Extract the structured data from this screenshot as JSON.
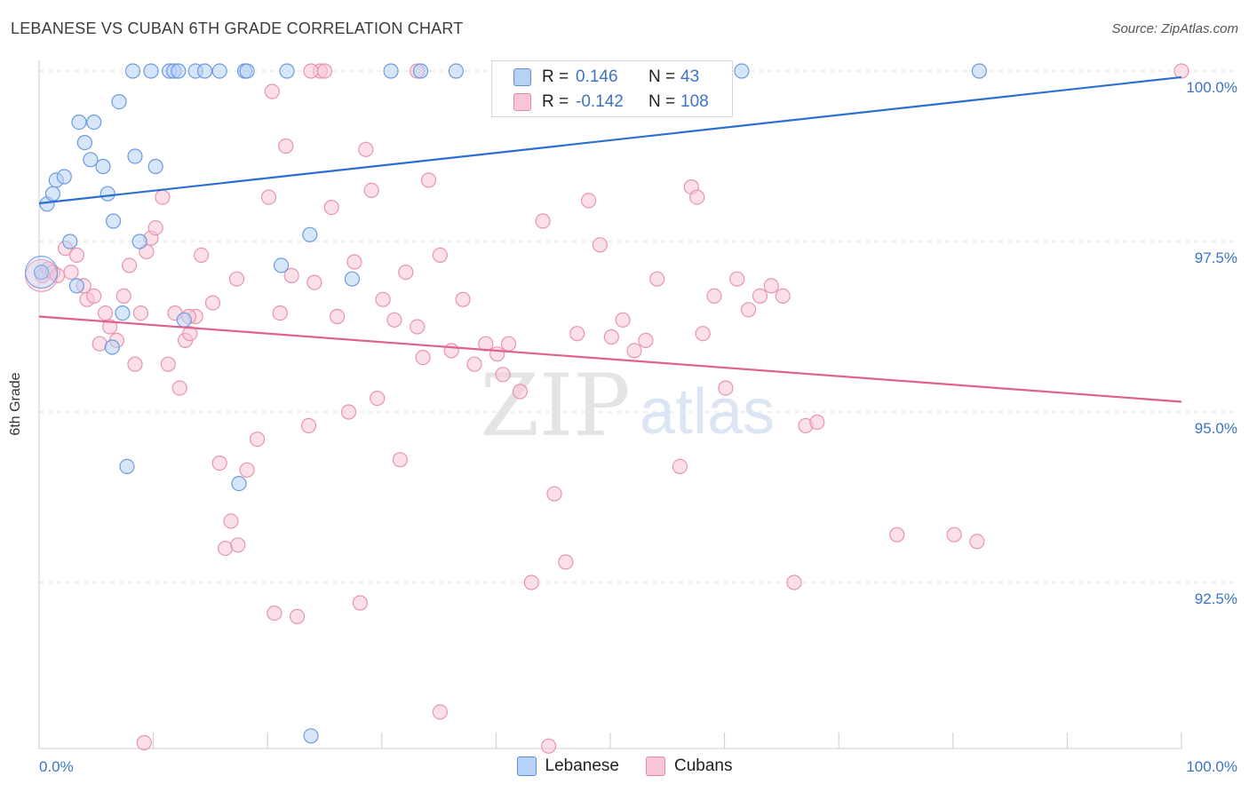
{
  "header": {
    "title": "LEBANESE VS CUBAN 6TH GRADE CORRELATION CHART",
    "source": "Source: ZipAtlas.com"
  },
  "watermark": {
    "zip": "ZIP",
    "atlas": "atlas"
  },
  "legend_top": {
    "r_label": "R =",
    "n_label": "N =",
    "series": [
      {
        "name": "Lebanese",
        "r": "0.146",
        "n": "43"
      },
      {
        "name": "Cubans",
        "r": "-0.142",
        "n": "108"
      }
    ]
  },
  "legend_bottom": {
    "labels": [
      "Lebanese",
      "Cubans"
    ]
  },
  "colors": {
    "blue_fill": "#b8d2f5",
    "blue_stroke": "#6b9be0",
    "blue_line": "#2b6fd0",
    "pink_fill": "#f8c6d6",
    "pink_stroke": "#e993b0",
    "pink_line": "#e0608f",
    "tick_label": "#3d74c4",
    "grid": "#e2e2e2"
  },
  "chart_data": {
    "type": "scatter",
    "title": "LEBANESE VS CUBAN 6TH GRADE CORRELATION CHART",
    "xlabel": "",
    "ylabel": "6th Grade",
    "xlim": [
      0,
      100
    ],
    "ylim": [
      90.1,
      100.4
    ],
    "x_tick_labels": [
      "0.0%",
      "100.0%"
    ],
    "y_ticks": [
      {
        "value": 92.5,
        "label": "92.5%"
      },
      {
        "value": 95.0,
        "label": "95.0%"
      },
      {
        "value": 97.5,
        "label": "97.5%"
      },
      {
        "value": 100.0,
        "label": "100.0%"
      }
    ],
    "series": [
      {
        "name": "Lebanese",
        "r": 0.146,
        "n": 43,
        "trend": {
          "x": [
            0,
            100
          ],
          "y": [
            98.06,
            99.91
          ]
        },
        "points": [
          [
            0.2,
            97.05
          ],
          [
            0.7,
            98.05
          ],
          [
            1.2,
            98.2
          ],
          [
            1.5,
            98.4
          ],
          [
            2.2,
            98.45
          ],
          [
            2.7,
            97.5
          ],
          [
            3.3,
            96.85
          ],
          [
            3.5,
            99.25
          ],
          [
            4.0,
            98.95
          ],
          [
            4.5,
            98.7
          ],
          [
            4.8,
            99.25
          ],
          [
            5.6,
            98.6
          ],
          [
            6.0,
            98.2
          ],
          [
            6.5,
            97.8
          ],
          [
            6.4,
            95.95
          ],
          [
            7.0,
            99.55
          ],
          [
            7.3,
            96.45
          ],
          [
            7.7,
            94.2
          ],
          [
            8.2,
            100.0
          ],
          [
            8.4,
            98.75
          ],
          [
            8.8,
            97.5
          ],
          [
            9.8,
            100.0
          ],
          [
            10.2,
            98.6
          ],
          [
            11.4,
            100.0
          ],
          [
            11.8,
            100.0
          ],
          [
            12.2,
            100.0
          ],
          [
            12.7,
            96.35
          ],
          [
            13.7,
            100.0
          ],
          [
            14.5,
            100.0
          ],
          [
            15.8,
            100.0
          ],
          [
            17.5,
            93.95
          ],
          [
            18.0,
            100.0
          ],
          [
            18.2,
            100.0
          ],
          [
            21.2,
            97.15
          ],
          [
            21.7,
            100.0
          ],
          [
            23.7,
            97.6
          ],
          [
            23.8,
            90.25
          ],
          [
            27.4,
            96.95
          ],
          [
            30.8,
            100.0
          ],
          [
            33.4,
            100.0
          ],
          [
            61.5,
            100.0
          ],
          [
            82.3,
            100.0
          ],
          [
            36.5,
            100.0
          ]
        ]
      },
      {
        "name": "Cubans",
        "r": -0.142,
        "n": 108,
        "trend": {
          "x": [
            0,
            100
          ],
          "y": [
            96.4,
            95.15
          ]
        },
        "points": [
          [
            0.3,
            97.0
          ],
          [
            0.8,
            97.1
          ],
          [
            1.2,
            97.05
          ],
          [
            1.6,
            97.0
          ],
          [
            2.3,
            97.4
          ],
          [
            2.8,
            97.05
          ],
          [
            3.3,
            97.3
          ],
          [
            3.9,
            96.85
          ],
          [
            4.2,
            96.65
          ],
          [
            4.8,
            96.7
          ],
          [
            5.3,
            96.0
          ],
          [
            5.8,
            96.45
          ],
          [
            6.2,
            96.25
          ],
          [
            6.8,
            96.05
          ],
          [
            7.4,
            96.7
          ],
          [
            7.9,
            97.15
          ],
          [
            8.4,
            95.7
          ],
          [
            8.9,
            96.45
          ],
          [
            9.4,
            97.35
          ],
          [
            9.8,
            97.55
          ],
          [
            10.2,
            97.7
          ],
          [
            10.8,
            98.15
          ],
          [
            11.3,
            95.7
          ],
          [
            11.9,
            96.45
          ],
          [
            12.3,
            95.35
          ],
          [
            12.8,
            96.05
          ],
          [
            13.2,
            96.15
          ],
          [
            13.7,
            96.4
          ],
          [
            14.2,
            97.3
          ],
          [
            15.2,
            96.6
          ],
          [
            15.8,
            94.25
          ],
          [
            16.3,
            93.0
          ],
          [
            16.8,
            93.4
          ],
          [
            17.3,
            96.95
          ],
          [
            18.2,
            94.15
          ],
          [
            19.1,
            94.6
          ],
          [
            20.1,
            98.15
          ],
          [
            20.6,
            92.05
          ],
          [
            21.1,
            96.45
          ],
          [
            21.6,
            98.9
          ],
          [
            22.1,
            97.0
          ],
          [
            22.6,
            92.0
          ],
          [
            23.6,
            94.8
          ],
          [
            24.1,
            96.9
          ],
          [
            24.6,
            100.0
          ],
          [
            25.6,
            98.0
          ],
          [
            26.1,
            96.4
          ],
          [
            27.1,
            95.0
          ],
          [
            27.6,
            97.2
          ],
          [
            28.1,
            92.2
          ],
          [
            28.6,
            98.85
          ],
          [
            29.1,
            98.25
          ],
          [
            29.6,
            95.2
          ],
          [
            30.1,
            96.65
          ],
          [
            31.1,
            96.35
          ],
          [
            31.6,
            94.3
          ],
          [
            32.1,
            97.05
          ],
          [
            33.1,
            96.25
          ],
          [
            33.6,
            95.8
          ],
          [
            34.1,
            98.4
          ],
          [
            35.1,
            97.3
          ],
          [
            36.1,
            95.9
          ],
          [
            37.1,
            96.65
          ],
          [
            38.1,
            95.7
          ],
          [
            39.1,
            96.0
          ],
          [
            40.1,
            95.85
          ],
          [
            40.6,
            95.55
          ],
          [
            41.1,
            96.0
          ],
          [
            42.1,
            95.3
          ],
          [
            43.1,
            92.5
          ],
          [
            44.1,
            97.8
          ],
          [
            45.1,
            93.8
          ],
          [
            46.1,
            92.8
          ],
          [
            47.1,
            96.15
          ],
          [
            48.1,
            98.1
          ],
          [
            49.1,
            97.45
          ],
          [
            50.1,
            96.1
          ],
          [
            51.1,
            96.35
          ],
          [
            52.1,
            95.9
          ],
          [
            53.1,
            96.05
          ],
          [
            54.1,
            96.95
          ],
          [
            56.1,
            94.2
          ],
          [
            57.1,
            98.3
          ],
          [
            57.6,
            98.15
          ],
          [
            58.1,
            96.15
          ],
          [
            59.1,
            96.7
          ],
          [
            60.1,
            95.35
          ],
          [
            61.1,
            96.95
          ],
          [
            62.1,
            96.5
          ],
          [
            63.1,
            96.7
          ],
          [
            64.1,
            96.85
          ],
          [
            65.1,
            96.7
          ],
          [
            66.1,
            92.5
          ],
          [
            67.1,
            94.8
          ],
          [
            68.1,
            94.85
          ],
          [
            75.1,
            93.2
          ],
          [
            80.1,
            93.2
          ],
          [
            82.1,
            93.1
          ],
          [
            100.0,
            100.0
          ],
          [
            20.4,
            99.7
          ],
          [
            23.8,
            100.0
          ],
          [
            25.0,
            100.0
          ],
          [
            13.1,
            96.4
          ],
          [
            35.1,
            90.6
          ],
          [
            33.1,
            100.0
          ],
          [
            44.6,
            90.1
          ],
          [
            17.4,
            93.05
          ],
          [
            9.2,
            90.15
          ]
        ]
      }
    ]
  }
}
